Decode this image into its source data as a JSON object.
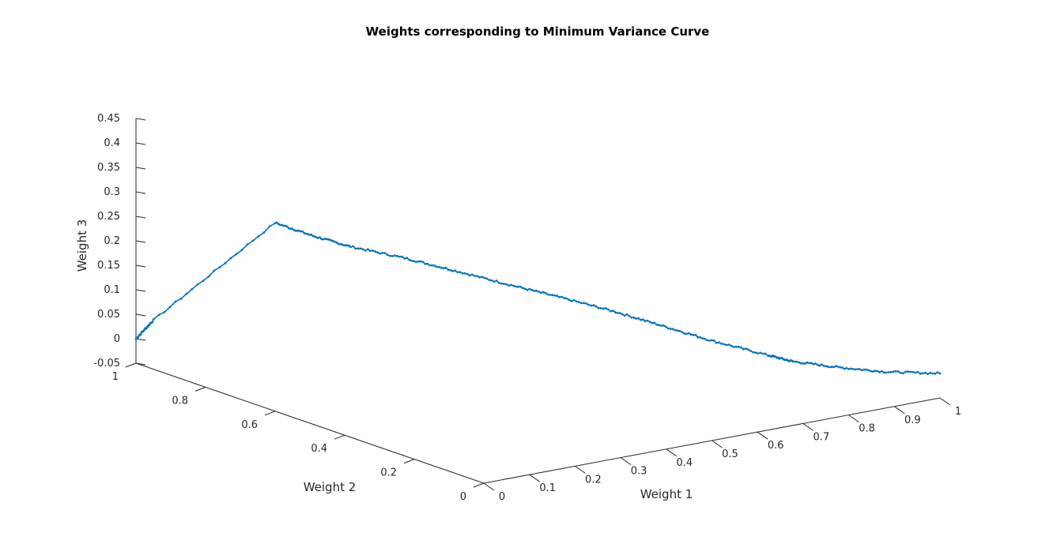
{
  "chart_data": {
    "type": "line",
    "title": "Weights corresponding to Minimum Variance Curve",
    "xlabel": "Weight 1",
    "ylabel": "Weight 2",
    "zlabel": "Weight 3",
    "xlim": [
      0,
      1
    ],
    "ylim": [
      0,
      1
    ],
    "zlim": [
      -0.05,
      0.45
    ],
    "x_ticks": [
      "0",
      "0.1",
      "0.2",
      "0.3",
      "0.4",
      "0.5",
      "0.6",
      "0.7",
      "0.8",
      "0.9",
      "1"
    ],
    "y_ticks": [
      "0",
      "0.2",
      "0.4",
      "0.6",
      "0.8",
      "1"
    ],
    "z_ticks": [
      "-0.05",
      "0",
      "0.05",
      "0.1",
      "0.15",
      "0.2",
      "0.25",
      "0.3",
      "0.35",
      "0.4",
      "0.45"
    ],
    "grid": false,
    "view": "3d",
    "color": "#0072BD",
    "marker": "dot",
    "series": [
      {
        "x": [
          0.0,
          0.0,
          0.0,
          0.06,
          0.12,
          0.2,
          0.28,
          0.36,
          0.44,
          0.52,
          0.6,
          0.68,
          0.76,
          0.8,
          0.86,
          0.92,
          1.0
        ],
        "y": [
          1.0,
          0.95,
          0.6,
          0.57,
          0.54,
          0.49,
          0.45,
          0.4,
          0.36,
          0.31,
          0.27,
          0.23,
          0.18,
          0.16,
          0.11,
          0.05,
          0.0
        ],
        "z": [
          0.0,
          0.05,
          0.335,
          0.305,
          0.28,
          0.255,
          0.225,
          0.195,
          0.165,
          0.135,
          0.1,
          0.065,
          0.035,
          0.02,
          0.01,
          0.005,
          0.0
        ]
      }
    ]
  }
}
